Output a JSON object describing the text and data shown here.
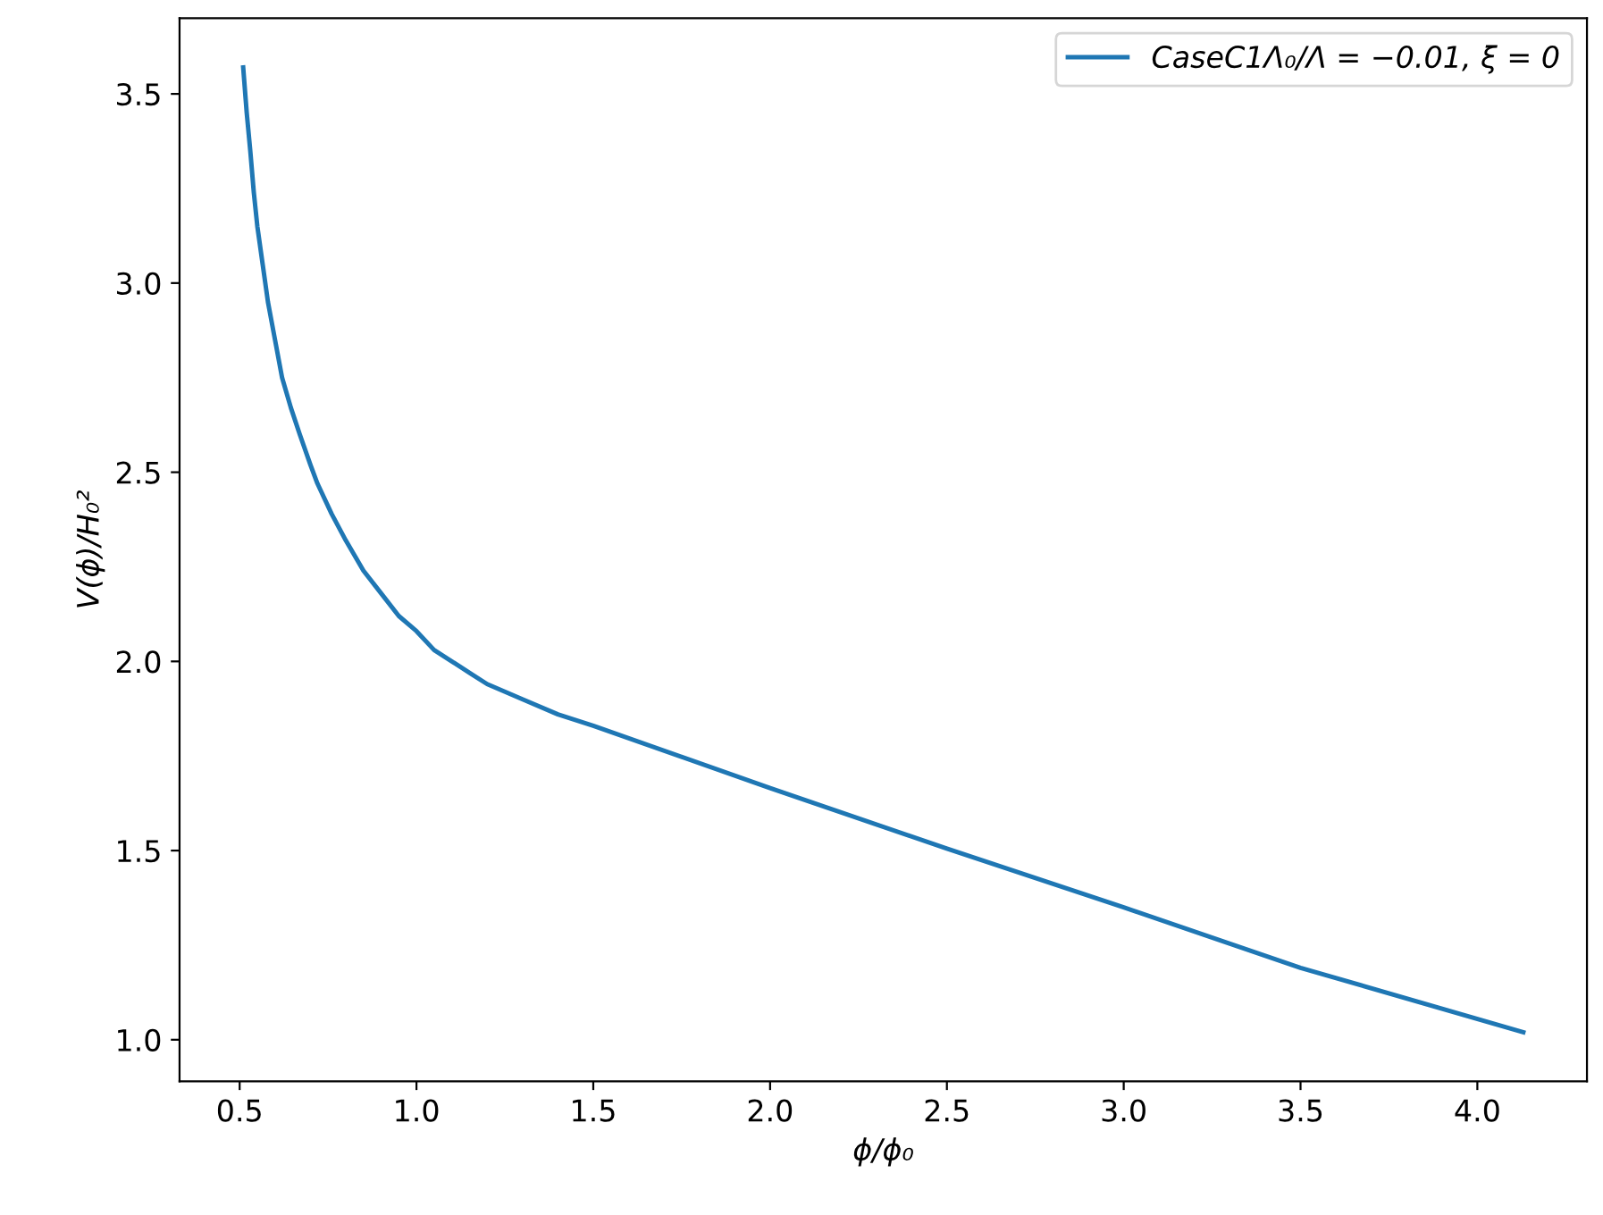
{
  "chart_data": {
    "type": "line",
    "xlabel": "ϕ/ϕ₀",
    "ylabel": "V(ϕ)/H₀²",
    "series": [
      {
        "name": "CaseC1Λ₀/Λ = −0.01, ξ = 0",
        "color": "#1f77b4",
        "x": [
          0.51,
          0.52,
          0.53,
          0.54,
          0.55,
          0.565,
          0.58,
          0.6,
          0.62,
          0.645,
          0.67,
          0.7,
          0.72,
          0.76,
          0.8,
          0.85,
          0.9,
          0.95,
          1.0,
          1.05,
          1.1,
          1.15,
          1.2,
          1.25,
          1.3,
          1.4,
          1.5,
          2.0,
          2.5,
          3.0,
          3.5,
          4.13
        ],
        "values": [
          3.57,
          3.45,
          3.35,
          3.24,
          3.15,
          3.05,
          2.95,
          2.85,
          2.75,
          2.67,
          2.6,
          2.52,
          2.47,
          2.39,
          2.32,
          2.24,
          2.18,
          2.12,
          2.08,
          2.03,
          2.0,
          1.97,
          1.94,
          1.92,
          1.9,
          1.86,
          1.83,
          1.665,
          1.505,
          1.35,
          1.19,
          1.02
        ]
      }
    ],
    "xlim": [
      0.33,
      4.31
    ],
    "ylim": [
      0.89,
      3.7
    ],
    "xticks": [
      0.5,
      {
        "value": 1,
        "label": "1.0"
      },
      1.5,
      {
        "value": 2,
        "label": "2.0"
      },
      2.5,
      {
        "value": 3,
        "label": "3.0"
      },
      3.5,
      {
        "value": 4,
        "label": "4.0"
      }
    ],
    "yticks": [
      {
        "value": 1,
        "label": "1.0"
      },
      1.5,
      {
        "value": 2,
        "label": "2.0"
      },
      2.5,
      {
        "value": 3,
        "label": "3.0"
      },
      3.5
    ],
    "legend": "top right",
    "grid": false
  }
}
